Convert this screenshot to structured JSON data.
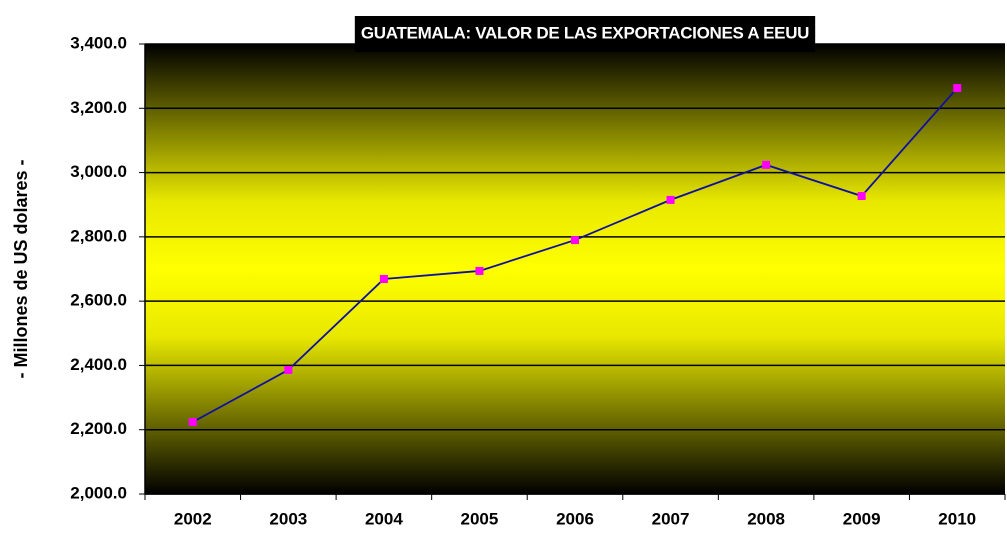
{
  "chart_data": {
    "type": "line",
    "title": "GUATEMALA: VALOR DE LAS EXPORTACIONES A EEUU",
    "y_axis_label": "- Millones de US dolares -",
    "categories": [
      "2002",
      "2003",
      "2004",
      "2005",
      "2006",
      "2007",
      "2008",
      "2009",
      "2010"
    ],
    "values": [
      2224,
      2386,
      2669,
      2694,
      2790,
      2915,
      3024,
      2927,
      3263
    ],
    "color": "#1010a0",
    "marker_color": "#ff00ff",
    "ylim": [
      2000,
      3400
    ],
    "yticks": [
      {
        "value": 2000,
        "label": "2,000.0"
      },
      {
        "value": 2200,
        "label": "2,200.0"
      },
      {
        "value": 2400,
        "label": "2,400.0"
      },
      {
        "value": 2600,
        "label": "2,600.0"
      },
      {
        "value": 2800,
        "label": "2,800.0"
      },
      {
        "value": 3000,
        "label": "3,000.0"
      },
      {
        "value": 3200,
        "label": "3,200.0"
      },
      {
        "value": 3400,
        "label": "3,400.0"
      }
    ],
    "grid": true
  }
}
